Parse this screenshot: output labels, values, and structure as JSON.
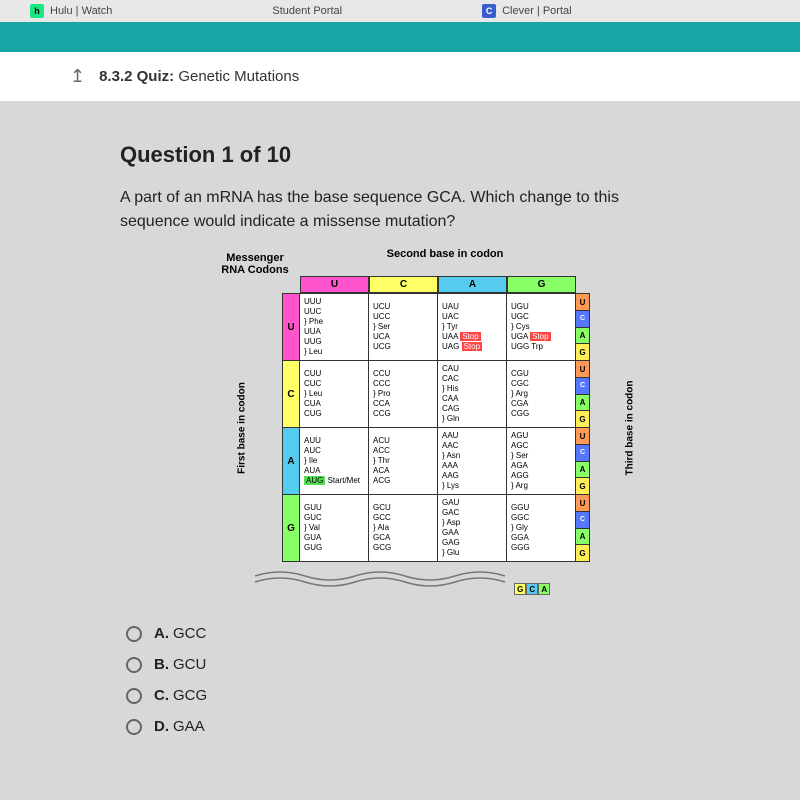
{
  "tabs": [
    {
      "icon": "h",
      "icon_class": "hulu",
      "label": "Hulu | Watch"
    },
    {
      "icon": "",
      "icon_class": "portal",
      "label": "Student Portal"
    },
    {
      "icon": "C",
      "icon_class": "clever",
      "label": "Clever | Portal"
    }
  ],
  "quiz_header": {
    "number": "8.3.2",
    "label": "Quiz:",
    "title": "Genetic Mutations"
  },
  "question": {
    "counter": "Question 1 of 10",
    "text": "A part of an mRNA has the base sequence GCA. Which change to this sequence would indicate a missense mutation?"
  },
  "codon_chart": {
    "left_title1": "Messenger",
    "left_title2": "RNA Codons",
    "top_title": "Second base in codon",
    "first_base_label": "First base in codon",
    "third_base_label": "Third base in codon",
    "columns": [
      "U",
      "C",
      "A",
      "G"
    ],
    "column_colors": {
      "U": "#ff55cc",
      "C": "#ffff66",
      "A": "#55ccee",
      "G": "#88ff66"
    },
    "right_colors": {
      "U": "#ff9955",
      "C": "#5577ff",
      "A": "#88ff66",
      "G": "#ffee55"
    },
    "rows": [
      {
        "first": "U",
        "cells": [
          [
            "UUU",
            "UUC",
            "} Phe",
            "UUA",
            "UUG",
            "} Leu"
          ],
          [
            "UCU",
            "UCC",
            "} Ser",
            "UCA",
            "UCG"
          ],
          [
            "UAU",
            "UAC",
            "} Tyr",
            "UAA Stop",
            "UAG Stop"
          ],
          [
            "UGU",
            "UGC",
            "} Cys",
            "UGA Stop",
            "UGG Trp"
          ]
        ]
      },
      {
        "first": "C",
        "cells": [
          [
            "CUU",
            "CUC",
            "} Leu",
            "CUA",
            "CUG"
          ],
          [
            "CCU",
            "CCC",
            "} Pro",
            "CCA",
            "CCG"
          ],
          [
            "CAU",
            "CAC",
            "} His",
            "CAA",
            "CAG",
            "} Gln"
          ],
          [
            "CGU",
            "CGC",
            "} Arg",
            "CGA",
            "CGG"
          ]
        ]
      },
      {
        "first": "A",
        "cells": [
          [
            "AUU",
            "AUC",
            "} Ile",
            "AUA",
            "AUG Start/Met"
          ],
          [
            "ACU",
            "ACC",
            "} Thr",
            "ACA",
            "ACG"
          ],
          [
            "AAU",
            "AAC",
            "} Asn",
            "AAA",
            "AAG",
            "} Lys"
          ],
          [
            "AGU",
            "AGC",
            "} Ser",
            "AGA",
            "AGG",
            "} Arg"
          ]
        ]
      },
      {
        "first": "G",
        "cells": [
          [
            "GUU",
            "GUC",
            "} Val",
            "GUA",
            "GUG"
          ],
          [
            "GCU",
            "GCC",
            "} Ala",
            "GCA",
            "GCG"
          ],
          [
            "GAU",
            "GAC",
            "} Asp",
            "GAA",
            "GAG",
            "} Glu"
          ],
          [
            "GGU",
            "GGC",
            "} Gly",
            "GGA",
            "GGG"
          ]
        ]
      }
    ],
    "gca_letters": [
      "G",
      "C",
      "A"
    ]
  },
  "answers": [
    {
      "letter": "A.",
      "text": "GCC"
    },
    {
      "letter": "B.",
      "text": "GCU"
    },
    {
      "letter": "C.",
      "text": "GCG"
    },
    {
      "letter": "D.",
      "text": "GAA"
    }
  ]
}
